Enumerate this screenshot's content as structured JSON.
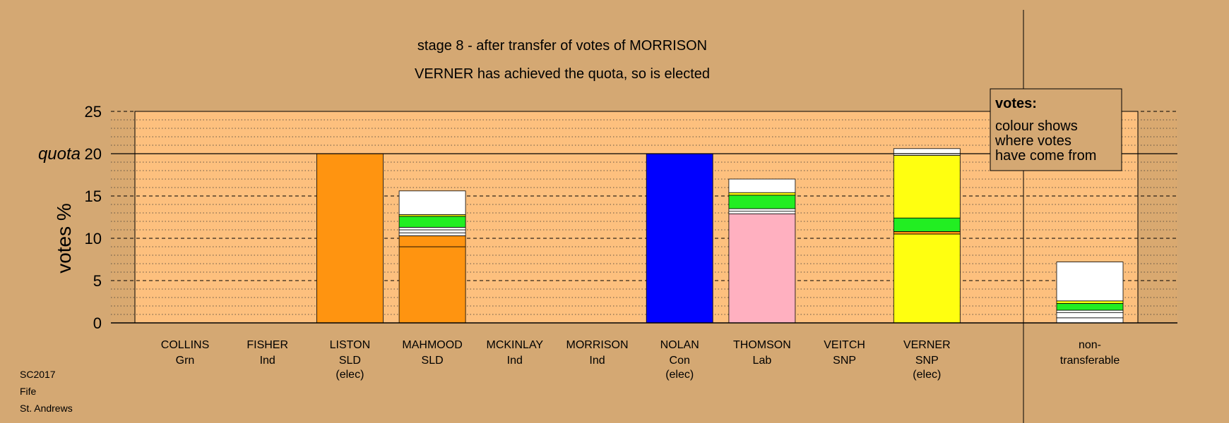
{
  "chart_data": {
    "type": "bar",
    "title": "stage 8 - after transfer of votes of MORRISON",
    "subtitle": "VERNER has achieved the quota, so is elected",
    "ylabel": "votes %",
    "quota_label": "quota",
    "quota": 20,
    "ylim": [
      0,
      25
    ],
    "yticks": [
      "0",
      "5",
      "10",
      "15",
      "20",
      "25"
    ],
    "grid": true,
    "legend": {
      "title": "votes:",
      "lines": [
        "colour shows",
        "where votes",
        "have come from"
      ],
      "position": "top-right"
    },
    "footer": [
      "SC2017",
      "Fife",
      "St. Andrews"
    ],
    "candidates": [
      {
        "name": "COLLINS",
        "party": "Grn",
        "status": "",
        "segments": []
      },
      {
        "name": "FISHER",
        "party": "Ind",
        "status": "",
        "segments": []
      },
      {
        "name": "LISTON",
        "party": "SLD",
        "status": "(elec)",
        "segments": [
          {
            "value": 20.0,
            "color": "#ff9410"
          }
        ]
      },
      {
        "name": "MAHMOOD",
        "party": "SLD",
        "status": "",
        "segments": [
          {
            "value": 9.0,
            "color": "#ff9410"
          },
          {
            "value": 1.3,
            "color": "#ff9410"
          },
          {
            "value": 0.35,
            "color": "#ffffff"
          },
          {
            "value": 0.35,
            "color": "#ffffff"
          },
          {
            "value": 0.3,
            "color": "#ffffff"
          },
          {
            "value": 1.3,
            "color": "#22ee22"
          },
          {
            "value": 0.2,
            "color": "#ffff10"
          },
          {
            "value": 2.8,
            "color": "#ffffff"
          }
        ]
      },
      {
        "name": "MCKINLAY",
        "party": "Ind",
        "status": "",
        "segments": []
      },
      {
        "name": "MORRISON",
        "party": "Ind",
        "status": "",
        "segments": []
      },
      {
        "name": "NOLAN",
        "party": "Con",
        "status": "(elec)",
        "segments": [
          {
            "value": 20.0,
            "color": "#0000ff"
          }
        ]
      },
      {
        "name": "THOMSON",
        "party": "Lab",
        "status": "",
        "segments": [
          {
            "value": 12.9,
            "color": "#ffb0c0"
          },
          {
            "value": 0.3,
            "color": "#ffffff"
          },
          {
            "value": 0.3,
            "color": "#ffffff"
          },
          {
            "value": 1.6,
            "color": "#22ee22"
          },
          {
            "value": 0.3,
            "color": "#ffff10"
          },
          {
            "value": 1.6,
            "color": "#ffffff"
          }
        ]
      },
      {
        "name": "VEITCH",
        "party": "SNP",
        "status": "",
        "segments": []
      },
      {
        "name": "VERNER",
        "party": "SNP",
        "status": "(elec)",
        "segments": [
          {
            "value": 10.5,
            "color": "#ffff10"
          },
          {
            "value": 0.3,
            "color": "#ff9410"
          },
          {
            "value": 1.6,
            "color": "#22ee22"
          },
          {
            "value": 7.4,
            "color": "#ffff10"
          },
          {
            "value": 0.8,
            "color": "#ffffff"
          }
        ]
      }
    ],
    "nontransferable": {
      "label1": "non-",
      "label2": "transferable",
      "segments": [
        {
          "value": 0.6,
          "color": "#ffffff"
        },
        {
          "value": 0.6,
          "color": "#ffffff"
        },
        {
          "value": 0.3,
          "color": "#ffffff"
        },
        {
          "value": 0.8,
          "color": "#22ee22"
        },
        {
          "value": 0.3,
          "color": "#ffff10"
        },
        {
          "value": 4.6,
          "color": "#ffffff"
        }
      ]
    },
    "colors": {
      "background": "#d4a873",
      "plot_background": "#fdc07e",
      "side_shade": "#d9a970"
    }
  }
}
